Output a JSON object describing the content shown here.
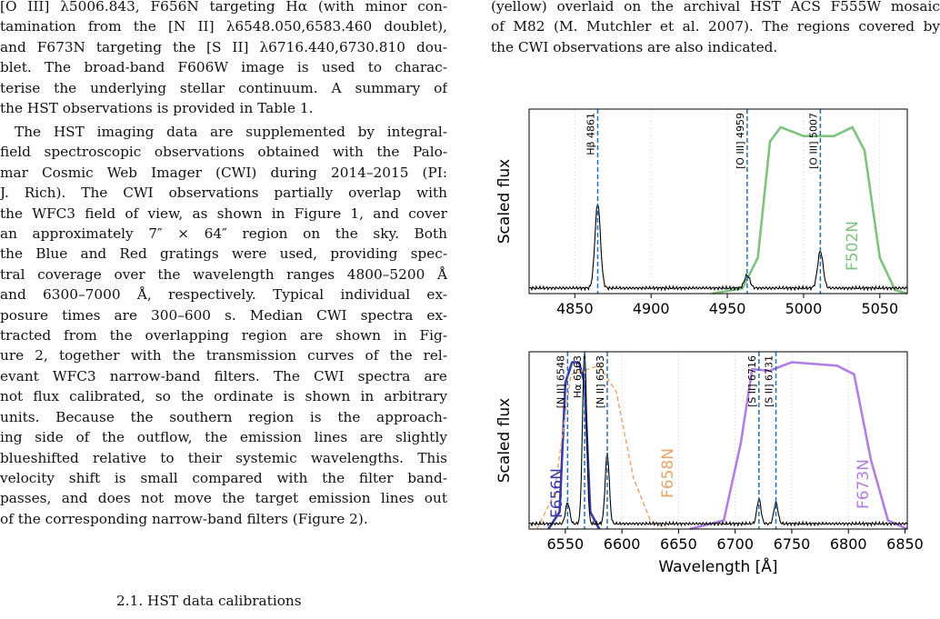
{
  "left_column": {
    "paragraph1_lines": [
      "[O III] λ5006.843, F656N targeting Hα (with minor con-",
      "tamination from the [N II] λ6548.050,6583.460 doublet),",
      "and F673N targeting the [S II] λ6716.440,6730.810 dou-",
      "blet. The broad-band F606W image is used to charac-",
      "terise the underlying stellar continuum. A summary of",
      "the HST observations is provided in Table 1."
    ],
    "paragraph2_lines": [
      "The HST imaging data are supplemented by integral-",
      "field spectroscopic observations obtained with the Palo-",
      "mar Cosmic Web Imager (CWI) during 2014–2015 (PI:",
      "J. Rich). The CWI observations partially overlap with",
      "the WFC3 field of view, as shown in Figure 1, and cover",
      "an approximately 7″ × 64″ region on the sky. Both",
      "the Blue and Red gratings were used, providing spec-",
      "tral coverage over the wavelength ranges 4800–5200 Å",
      "and 6300–7000 Å, respectively. Typical individual ex-",
      "posure times are 300–600 s. Median CWI spectra ex-",
      "tracted from the overlapping region are shown in Fig-",
      "ure 2, together with the transmission curves of the rel-",
      "evant WFC3 narrow-band filters. The CWI spectra are",
      "not flux calibrated, so the ordinate is shown in arbitrary",
      "units. Because the southern region is the approach-",
      "ing side of the outflow, the emission lines are slightly",
      "blueshifted relative to their systemic wavelengths. This",
      "velocity shift is small compared with the filter band-",
      "passes, and does not move the target emission lines out",
      "of the corresponding narrow-band filters (Figure 2)."
    ],
    "section_heading": "2.1. HST data calibrations"
  },
  "right_column": {
    "caption_lines": [
      "(yellow) overlaid on the archival HST ACS F555W mosaic",
      "of M82 (M. Mutchler et al. 2007). The regions covered by",
      "the CWI observations are also indicated."
    ]
  },
  "colors": {
    "link": "#2f3ea8",
    "green_filter": "#7fc27f",
    "orange_filter": "#e8a46a",
    "purple_filter": "#b27ee6",
    "navy_filter": "#3b3ba8",
    "line_marker": "#1f6fb5"
  },
  "chart_data": [
    {
      "type": "line",
      "ylabel": "Scaled flux",
      "xlim": [
        4820,
        5068
      ],
      "xticks": [
        4850,
        4900,
        4950,
        5000,
        5050
      ],
      "grid": true,
      "lines": [
        {
          "label": "Hβ 4861",
          "x": 4865
        },
        {
          "label": "[O III] 4959",
          "x": 4963
        },
        {
          "label": "[O III] 5007",
          "x": 5011
        }
      ],
      "filters": [
        {
          "name": "F502N",
          "color": "#7fc27f",
          "style": "solid",
          "points": [
            [
              4940,
              0.0
            ],
            [
              4960,
              0.03
            ],
            [
              4970,
              0.2
            ],
            [
              4978,
              0.85
            ],
            [
              4985,
              0.93
            ],
            [
              5000,
              0.88
            ],
            [
              5020,
              0.88
            ],
            [
              5032,
              0.93
            ],
            [
              5040,
              0.8
            ],
            [
              5050,
              0.2
            ],
            [
              5060,
              0.02
            ],
            [
              5068,
              0.0
            ]
          ]
        }
      ],
      "spectrum_peaks": [
        {
          "x": 4865,
          "height": 0.46
        },
        {
          "x": 4963,
          "height": 0.07
        },
        {
          "x": 5011,
          "height": 0.2
        }
      ]
    },
    {
      "type": "line",
      "xlabel": "Wavelength [Å]",
      "ylabel": "Scaled flux",
      "xlim": [
        6518,
        6852
      ],
      "xticks": [
        6550,
        6600,
        6650,
        6700,
        6750,
        6800,
        6850
      ],
      "grid": true,
      "lines": [
        {
          "label": "[N II] 6548",
          "x": 6552
        },
        {
          "label": "Hα 6563",
          "x": 6567
        },
        {
          "label": "[N II] 6583",
          "x": 6587
        },
        {
          "label": "[S II] 6716",
          "x": 6721
        },
        {
          "label": "[S II] 6731",
          "x": 6736
        }
      ],
      "filters": [
        {
          "name": "F656N",
          "color": "#3b3ba8",
          "style": "solid",
          "points": [
            [
              6535,
              0.0
            ],
            [
              6545,
              0.1
            ],
            [
              6550,
              0.85
            ],
            [
              6556,
              0.97
            ],
            [
              6562,
              0.97
            ],
            [
              6567,
              0.85
            ],
            [
              6572,
              0.1
            ],
            [
              6580,
              0.0
            ]
          ]
        },
        {
          "name": "F658N",
          "color": "#e8a46a",
          "style": "dashed",
          "points": [
            [
              6525,
              0.0
            ],
            [
              6540,
              0.2
            ],
            [
              6555,
              0.9
            ],
            [
              6580,
              0.95
            ],
            [
              6595,
              0.8
            ],
            [
              6610,
              0.3
            ],
            [
              6625,
              0.05
            ],
            [
              6640,
              0.0
            ]
          ]
        },
        {
          "name": "F673N",
          "color": "#b27ee6",
          "style": "solid",
          "points": [
            [
              6660,
              0.0
            ],
            [
              6690,
              0.05
            ],
            [
              6705,
              0.5
            ],
            [
              6715,
              0.93
            ],
            [
              6730,
              0.92
            ],
            [
              6750,
              0.97
            ],
            [
              6790,
              0.95
            ],
            [
              6805,
              0.9
            ],
            [
              6820,
              0.4
            ],
            [
              6835,
              0.05
            ],
            [
              6852,
              0.0
            ]
          ]
        }
      ],
      "spectrum_peaks": [
        {
          "x": 6552,
          "height": 0.12
        },
        {
          "x": 6567,
          "height": 0.98
        },
        {
          "x": 6587,
          "height": 0.4
        },
        {
          "x": 6721,
          "height": 0.14
        },
        {
          "x": 6736,
          "height": 0.12
        }
      ]
    }
  ]
}
